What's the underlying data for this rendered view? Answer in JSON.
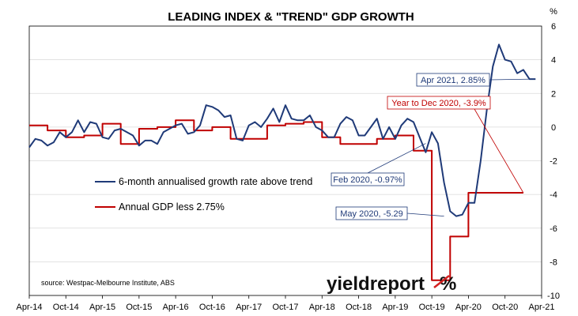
{
  "chart_data": {
    "type": "line",
    "title": "LEADING INDEX & \"TREND\" GDP GROWTH",
    "y_unit": "%",
    "ylim": [
      -10,
      6
    ],
    "y_ticks": [
      6,
      4,
      2,
      0,
      -2,
      -4,
      -6,
      -8,
      -10
    ],
    "x_ticks": [
      "Apr-14",
      "Oct-14",
      "Apr-15",
      "Oct-15",
      "Apr-16",
      "Oct-16",
      "Apr-17",
      "Oct-17",
      "Apr-18",
      "Oct-18",
      "Apr-19",
      "Oct-19",
      "Apr-20",
      "Oct-20",
      "Apr-21"
    ],
    "grid": "horizontal",
    "y_axis_side": "right",
    "series": [
      {
        "name": "6-month annualised growth rate above trend",
        "color": "#1f3a78",
        "x": [
          0,
          1,
          2,
          3,
          4,
          5,
          6,
          7,
          8,
          9,
          10,
          11,
          12,
          13,
          14,
          15,
          16,
          17,
          18,
          19,
          20,
          21,
          22,
          23,
          24,
          25,
          26,
          27,
          28,
          29,
          30,
          31,
          32,
          33,
          34,
          35,
          36,
          37,
          38,
          39,
          40,
          41,
          42,
          43,
          44,
          45,
          46,
          47,
          48,
          49,
          50,
          51,
          52,
          53,
          54,
          55,
          56,
          57,
          58,
          59,
          60,
          61,
          62,
          63,
          64,
          65,
          66,
          67,
          68,
          69,
          70,
          71,
          72,
          73,
          74,
          75,
          76,
          77,
          78,
          79,
          80,
          81,
          82,
          83
        ],
        "y": [
          -1.2,
          -0.7,
          -0.8,
          -1.1,
          -0.9,
          -0.3,
          -0.6,
          -0.3,
          0.4,
          -0.3,
          0.3,
          0.2,
          -0.6,
          -0.7,
          -0.2,
          -0.1,
          -0.3,
          -0.5,
          -1.1,
          -0.8,
          -0.8,
          -1.0,
          -0.3,
          -0.1,
          0.1,
          0.2,
          -0.4,
          -0.3,
          0.1,
          1.3,
          1.2,
          1.0,
          0.6,
          0.7,
          -0.7,
          -0.8,
          0.1,
          0.3,
          0.0,
          0.5,
          1.1,
          0.3,
          1.3,
          0.5,
          0.4,
          0.4,
          0.7,
          0.0,
          -0.2,
          -0.6,
          -0.6,
          0.2,
          0.6,
          0.4,
          -0.5,
          -0.5,
          0.0,
          0.5,
          -0.7,
          0.0,
          -0.7,
          0.1,
          0.5,
          0.3,
          -0.6,
          -1.5,
          -0.3,
          -0.97,
          -3.3,
          -5.0,
          -5.29,
          -5.2,
          -4.5,
          -4.5,
          -2.0,
          1.0,
          3.6,
          4.9,
          4.0,
          3.9,
          3.2,
          3.4,
          2.85,
          2.85
        ]
      },
      {
        "name": "Annual GDP less 2.75%",
        "color": "#c00000",
        "x": [
          0,
          3,
          3,
          6,
          6,
          9,
          9,
          12,
          12,
          15,
          15,
          18,
          18,
          21,
          21,
          24,
          24,
          27,
          27,
          30,
          30,
          33,
          33,
          36,
          36,
          39,
          39,
          42,
          42,
          45,
          45,
          48,
          48,
          51,
          51,
          54,
          54,
          57,
          57,
          60,
          60,
          63,
          63,
          66,
          66,
          69,
          69,
          72,
          72,
          75,
          75,
          78,
          78,
          81
        ],
        "y": [
          0.1,
          0.1,
          -0.2,
          -0.2,
          -0.6,
          -0.6,
          -0.5,
          -0.5,
          0.2,
          0.2,
          -1.0,
          -1.0,
          -0.1,
          -0.1,
          0.0,
          0.0,
          0.4,
          0.4,
          -0.2,
          -0.2,
          0.0,
          0.0,
          -0.7,
          -0.7,
          -0.7,
          -0.7,
          0.1,
          0.1,
          0.2,
          0.2,
          0.3,
          0.3,
          -0.6,
          -0.6,
          -1.0,
          -1.0,
          -1.0,
          -1.0,
          -0.7,
          -0.7,
          -0.5,
          -0.5,
          -1.4,
          -1.4,
          -9.1,
          -9.1,
          -6.5,
          -6.5,
          -3.9,
          -3.9,
          -3.9,
          -3.9,
          -3.9,
          -3.9
        ]
      }
    ],
    "legend_placement": "center-left",
    "annotations": [
      {
        "text": "Apr 2021, 2.85%",
        "series": 0,
        "point_x": 82.5,
        "point_y": 2.85,
        "color": "#1f3a78"
      },
      {
        "text": "Year to Dec 2020, -3.9%",
        "series": 1,
        "point_x": 81,
        "point_y": -3.9,
        "color": "#c00000"
      },
      {
        "text": "Feb 2020, -0.97%",
        "series": 0,
        "point_x": 65,
        "point_y": -0.97,
        "color": "#1f3a78"
      },
      {
        "text": "May 2020, -5.29",
        "series": 0,
        "point_x": 68,
        "point_y": -5.29,
        "color": "#1f3a78"
      }
    ],
    "source": "source: Westpac-Melbourne Institute, ABS"
  },
  "logo": {
    "text_main": "yieldreport",
    "text_symbol": "%",
    "colors": {
      "dark": "#111111",
      "green": "#3aa13a",
      "red": "#d32020"
    }
  }
}
